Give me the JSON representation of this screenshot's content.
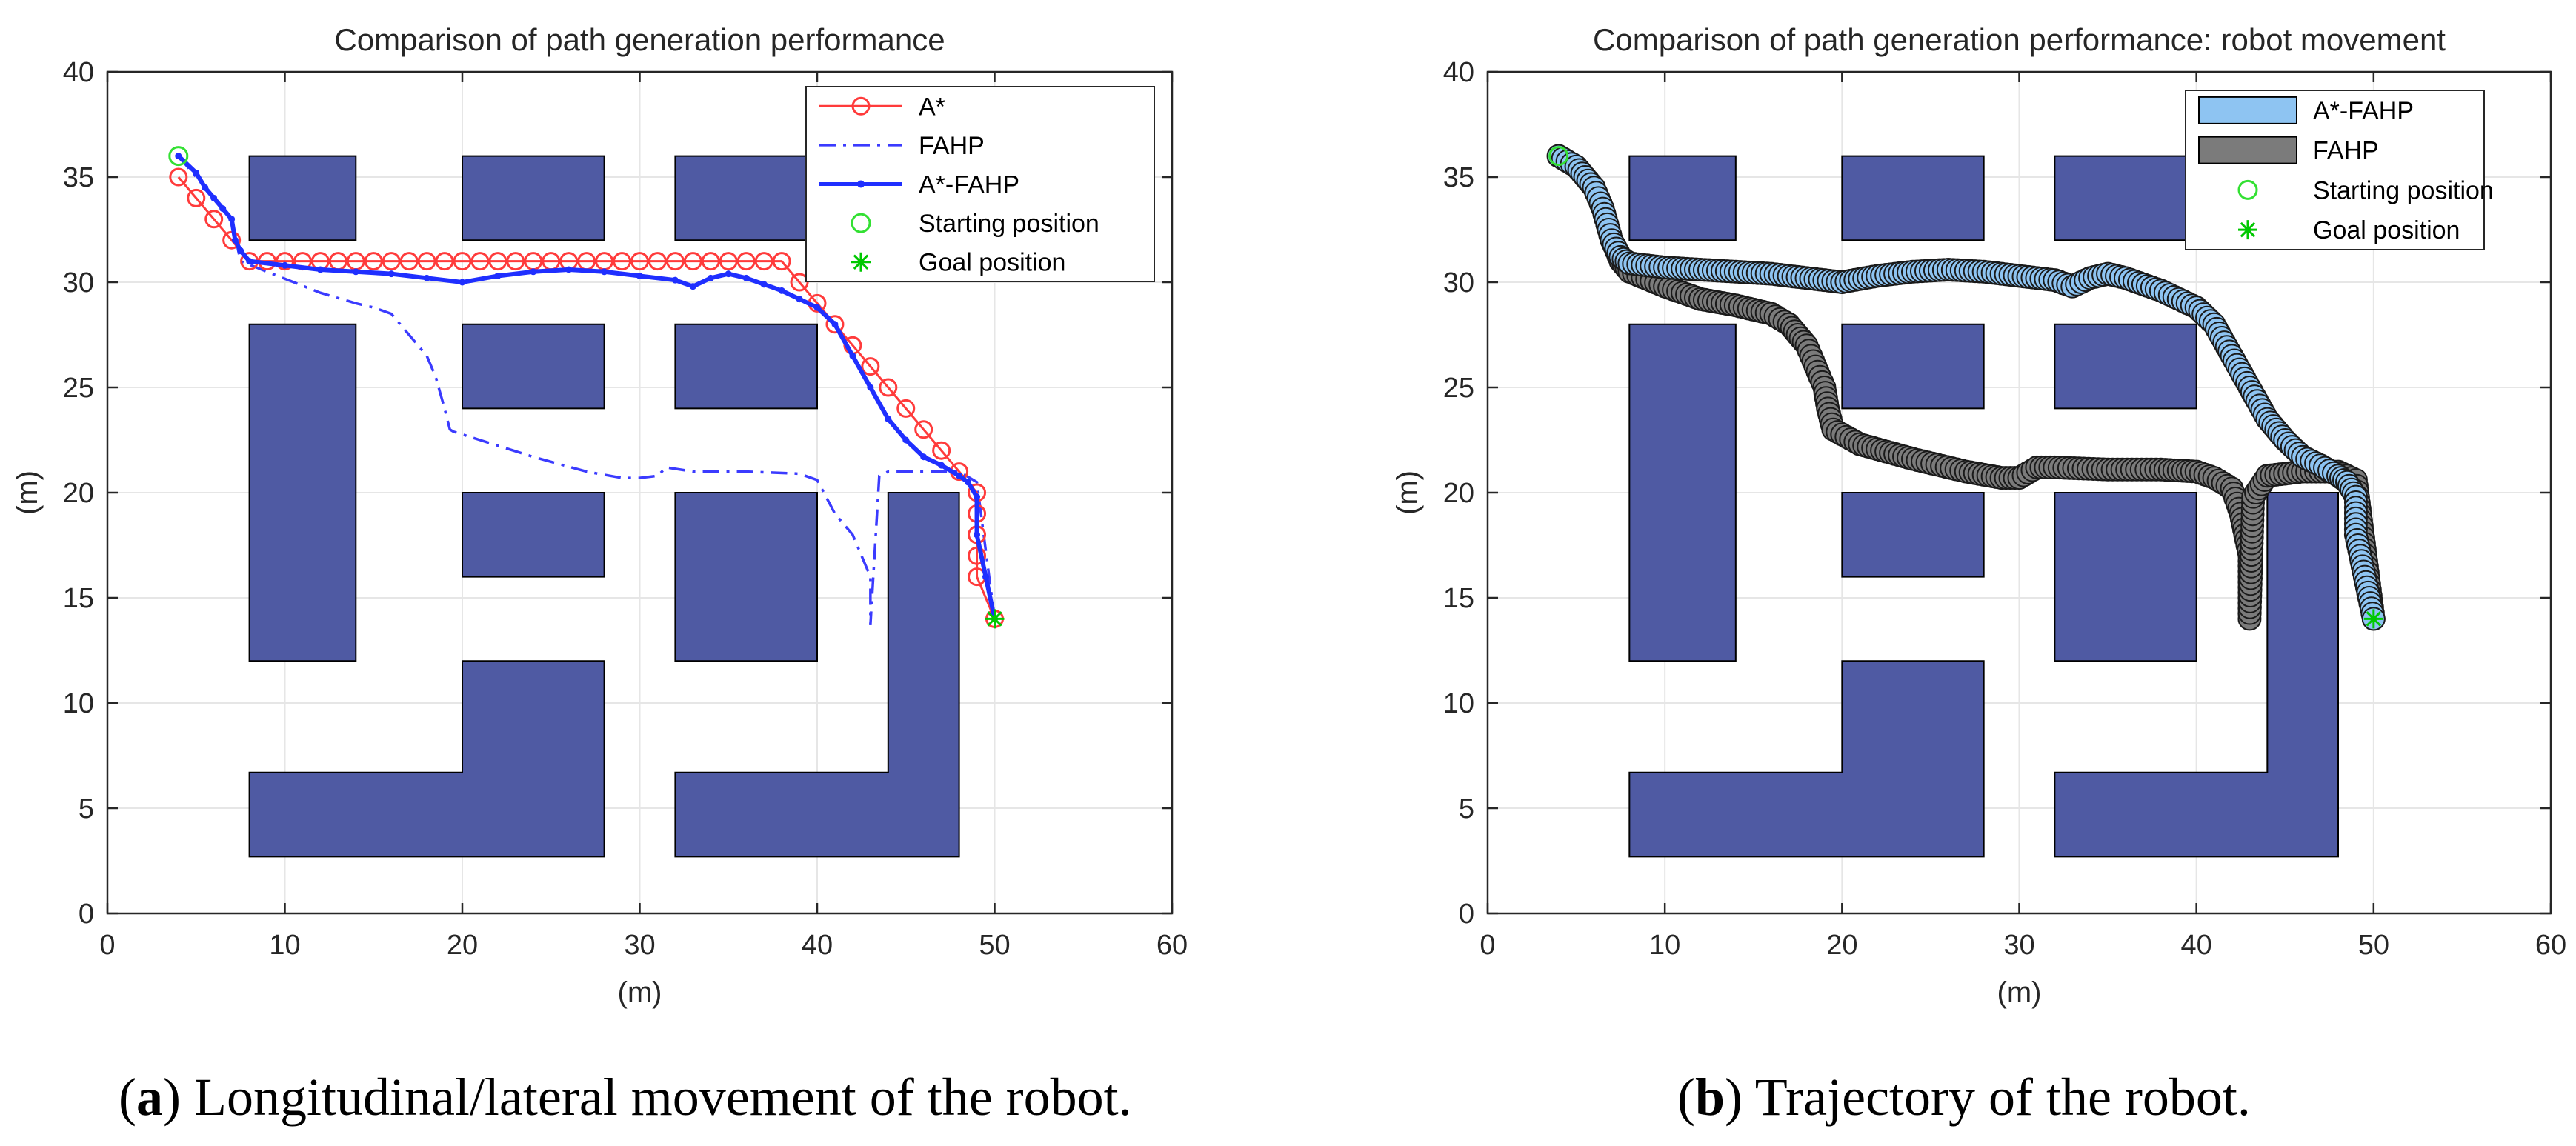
{
  "captions": {
    "a_letter": "a",
    "a_text": "Longitudinal/lateral movement of the robot.",
    "b_letter": "b",
    "b_text": "Trajectory of the robot."
  },
  "colors": {
    "obstacle": "#4f5aa3",
    "obstacle_edge": "#000000",
    "a_star": "#ff3b3b",
    "fahp_line": "#3b3bff",
    "astar_fahp_line": "#1f2fff",
    "start": "#33e033",
    "goal": "#00c800",
    "astar_fahp_fill": "#8ec4f2",
    "fahp_fill": "#7b7b7b",
    "grid": "#e6e6e6"
  },
  "chart_data": [
    {
      "type": "line",
      "title": "Comparison of path generation performance",
      "xlabel": "(m)",
      "ylabel": "(m)",
      "xlim": [
        0,
        60
      ],
      "ylim": [
        0,
        40
      ],
      "xticks": [
        0,
        10,
        20,
        30,
        40,
        50,
        60
      ],
      "yticks": [
        0,
        5,
        10,
        15,
        20,
        25,
        30,
        35,
        40
      ],
      "grid": true,
      "legend_position": "top-right",
      "obstacles": [
        [
          [
            8,
            32
          ],
          [
            14,
            32
          ],
          [
            14,
            36
          ],
          [
            8,
            36
          ]
        ],
        [
          [
            20,
            32
          ],
          [
            28,
            32
          ],
          [
            28,
            36
          ],
          [
            20,
            36
          ]
        ],
        [
          [
            32,
            32
          ],
          [
            40,
            32
          ],
          [
            40,
            36
          ],
          [
            32,
            36
          ]
        ],
        [
          [
            8,
            12
          ],
          [
            14,
            12
          ],
          [
            14,
            28
          ],
          [
            8,
            28
          ]
        ],
        [
          [
            20,
            24
          ],
          [
            28,
            24
          ],
          [
            28,
            28
          ],
          [
            20,
            28
          ]
        ],
        [
          [
            32,
            24
          ],
          [
            40,
            24
          ],
          [
            40,
            28
          ],
          [
            32,
            28
          ]
        ],
        [
          [
            20,
            16
          ],
          [
            28,
            16
          ],
          [
            28,
            20
          ],
          [
            20,
            20
          ]
        ],
        [
          [
            32,
            12
          ],
          [
            40,
            12
          ],
          [
            40,
            20
          ],
          [
            32,
            20
          ]
        ],
        [
          [
            8,
            2.7
          ],
          [
            28,
            2.7
          ],
          [
            28,
            12
          ],
          [
            20,
            12
          ],
          [
            20,
            6.7
          ],
          [
            8,
            6.7
          ]
        ],
        [
          [
            32,
            2.7
          ],
          [
            48,
            2.7
          ],
          [
            48,
            20
          ],
          [
            44,
            20
          ],
          [
            44,
            6.7
          ],
          [
            32,
            6.7
          ]
        ]
      ],
      "series": [
        {
          "name": "A*",
          "style": "circle-line",
          "x": [
            4,
            5,
            6,
            7,
            8,
            9,
            10,
            11,
            12,
            13,
            14,
            15,
            16,
            17,
            18,
            19,
            20,
            21,
            22,
            23,
            24,
            25,
            26,
            27,
            28,
            29,
            30,
            31,
            32,
            33,
            34,
            35,
            36,
            37,
            38,
            39,
            40,
            41,
            42,
            43,
            44,
            45,
            46,
            47,
            48,
            49,
            49,
            49,
            49,
            49,
            50
          ],
          "y": [
            35,
            34,
            33,
            32,
            31,
            31,
            31,
            31,
            31,
            31,
            31,
            31,
            31,
            31,
            31,
            31,
            31,
            31,
            31,
            31,
            31,
            31,
            31,
            31,
            31,
            31,
            31,
            31,
            31,
            31,
            31,
            31,
            31,
            31,
            31,
            30,
            29,
            28,
            27,
            26,
            25,
            24,
            23,
            22,
            21,
            20,
            19,
            18,
            17,
            16,
            14
          ]
        },
        {
          "name": "FAHP",
          "style": "dash-dot",
          "x": [
            4,
            5,
            6,
            7,
            7.5,
            9,
            12,
            14,
            15,
            16,
            17,
            18,
            18.5,
            19,
            19.3,
            19.5,
            21,
            24,
            27,
            29,
            30,
            31,
            31.5,
            33,
            36,
            39,
            40,
            41,
            42,
            42.5,
            43,
            43,
            43,
            43.5,
            44,
            46,
            48,
            49,
            50
          ],
          "y": [
            36,
            35,
            34,
            33,
            31,
            30.5,
            29.5,
            29,
            28.8,
            28.5,
            27.5,
            26.5,
            25.5,
            24,
            23,
            22.9,
            22.5,
            21.7,
            21,
            20.7,
            20.7,
            20.8,
            21.2,
            21,
            21,
            20.9,
            20.6,
            19,
            18,
            17,
            16,
            15,
            13.7,
            20.8,
            21,
            21,
            21,
            20.5,
            14
          ]
        },
        {
          "name": "A*-FAHP",
          "style": "dot-line",
          "x": [
            4,
            5,
            5.5,
            6,
            6.5,
            7,
            7.2,
            7.5,
            8,
            10,
            12,
            14,
            16,
            18,
            20,
            22,
            24,
            26,
            28,
            30,
            32,
            33,
            34,
            35,
            36,
            37,
            38,
            39,
            40,
            41,
            42,
            43,
            44,
            45,
            46,
            47,
            48,
            48.5,
            49,
            49,
            49.5,
            50
          ],
          "y": [
            36,
            35.2,
            34.5,
            34,
            33.5,
            33,
            32,
            31.5,
            31,
            30.8,
            30.6,
            30.5,
            30.4,
            30.2,
            30,
            30.3,
            30.5,
            30.6,
            30.5,
            30.3,
            30.1,
            29.8,
            30.2,
            30.4,
            30.2,
            29.9,
            29.6,
            29.2,
            28.8,
            28,
            26.5,
            25,
            23.5,
            22.5,
            21.7,
            21.3,
            20.8,
            20.5,
            19.8,
            18,
            16,
            14
          ]
        },
        {
          "name": "Starting position",
          "style": "marker-circle",
          "x": [
            4
          ],
          "y": [
            36
          ]
        },
        {
          "name": "Goal position",
          "style": "marker-star",
          "x": [
            50
          ],
          "y": [
            14
          ]
        }
      ]
    },
    {
      "type": "line",
      "title": "Comparison of path generation performance: robot movement",
      "xlabel": "(m)",
      "ylabel": "(m)",
      "xlim": [
        0,
        60
      ],
      "ylim": [
        0,
        40
      ],
      "xticks": [
        0,
        10,
        20,
        30,
        40,
        50,
        60
      ],
      "yticks": [
        0,
        5,
        10,
        15,
        20,
        25,
        30,
        35,
        40
      ],
      "grid": true,
      "legend_position": "top-right",
      "obstacles": [
        [
          [
            8,
            32
          ],
          [
            14,
            32
          ],
          [
            14,
            36
          ],
          [
            8,
            36
          ]
        ],
        [
          [
            20,
            32
          ],
          [
            28,
            32
          ],
          [
            28,
            36
          ],
          [
            20,
            36
          ]
        ],
        [
          [
            32,
            32
          ],
          [
            40,
            32
          ],
          [
            40,
            36
          ],
          [
            32,
            36
          ]
        ],
        [
          [
            8,
            12
          ],
          [
            14,
            12
          ],
          [
            14,
            28
          ],
          [
            8,
            28
          ]
        ],
        [
          [
            20,
            24
          ],
          [
            28,
            24
          ],
          [
            28,
            28
          ],
          [
            20,
            28
          ]
        ],
        [
          [
            32,
            24
          ],
          [
            40,
            24
          ],
          [
            40,
            28
          ],
          [
            32,
            28
          ]
        ],
        [
          [
            20,
            16
          ],
          [
            28,
            16
          ],
          [
            28,
            20
          ],
          [
            20,
            20
          ]
        ],
        [
          [
            32,
            12
          ],
          [
            40,
            12
          ],
          [
            40,
            20
          ],
          [
            32,
            20
          ]
        ],
        [
          [
            8,
            2.7
          ],
          [
            28,
            2.7
          ],
          [
            28,
            12
          ],
          [
            20,
            12
          ],
          [
            20,
            6.7
          ],
          [
            8,
            6.7
          ]
        ],
        [
          [
            32,
            2.7
          ],
          [
            48,
            2.7
          ],
          [
            48,
            20
          ],
          [
            44,
            20
          ],
          [
            44,
            6.7
          ],
          [
            32,
            6.7
          ]
        ]
      ],
      "series": [
        {
          "name": "FAHP",
          "style": "robot-trail",
          "x": [
            4,
            5,
            6,
            6.5,
            7,
            7.5,
            8,
            10,
            12,
            14,
            16,
            17,
            18,
            18.5,
            19,
            19.2,
            19.5,
            21,
            24,
            27,
            29,
            30,
            31,
            32,
            35,
            38,
            40,
            41,
            42,
            42.5,
            43,
            43,
            43,
            43.2,
            44,
            46,
            48,
            49,
            50
          ],
          "y": [
            36,
            35.5,
            34.5,
            33.5,
            32,
            31,
            30.5,
            29.8,
            29.2,
            28.9,
            28.5,
            28,
            27,
            26,
            25,
            24,
            23,
            22.3,
            21.6,
            21,
            20.7,
            20.7,
            21.2,
            21.2,
            21.1,
            21.1,
            21,
            20.7,
            20.2,
            19,
            17,
            15.5,
            14,
            19.8,
            20.8,
            21,
            21,
            20.6,
            14
          ]
        },
        {
          "name": "A*-FAHP",
          "style": "robot-trail",
          "x": [
            4,
            5,
            6,
            6.5,
            7,
            7.5,
            8,
            10,
            12,
            14,
            16,
            18,
            20,
            22,
            24,
            26,
            28,
            30,
            32,
            33,
            34,
            35,
            36,
            37,
            38,
            39,
            40,
            41,
            42,
            43,
            44,
            45,
            46,
            47,
            48,
            48.5,
            49,
            49,
            49.5,
            50
          ],
          "y": [
            36,
            35.5,
            34.5,
            33.5,
            32,
            31.2,
            30.9,
            30.7,
            30.6,
            30.5,
            30.4,
            30.2,
            30,
            30.3,
            30.5,
            30.6,
            30.5,
            30.3,
            30.1,
            29.8,
            30.2,
            30.4,
            30.2,
            29.9,
            29.6,
            29.2,
            28.8,
            28,
            26.5,
            25,
            23.5,
            22.5,
            21.7,
            21.3,
            20.8,
            20.5,
            19.8,
            18,
            16,
            14
          ]
        },
        {
          "name": "Starting position",
          "style": "marker-circle",
          "x": [
            4
          ],
          "y": [
            36
          ]
        },
        {
          "name": "Goal position",
          "style": "marker-star",
          "x": [
            50
          ],
          "y": [
            14
          ]
        }
      ]
    }
  ]
}
